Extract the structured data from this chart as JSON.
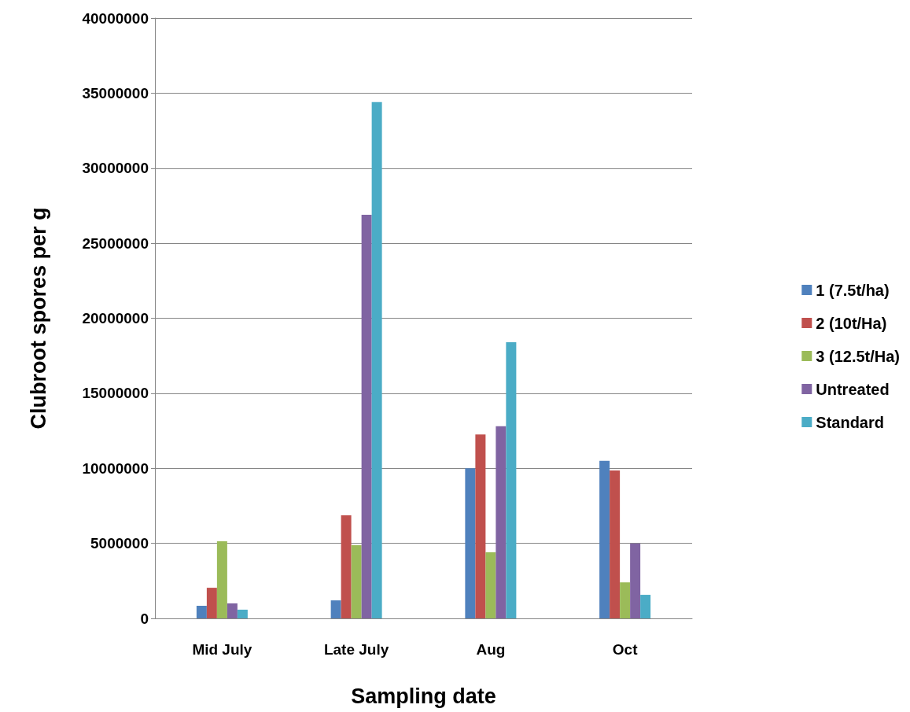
{
  "chart_data": {
    "type": "bar",
    "xlabel": "Sampling date",
    "ylabel": "Clubroot spores per g",
    "categories": [
      "Mid July",
      "Late July",
      "Aug",
      "Oct"
    ],
    "series": [
      {
        "name": "1 (7.5t/ha)",
        "color": "#4f81bd",
        "values": [
          840000,
          1200000,
          10000000,
          10500000
        ]
      },
      {
        "name": "2 (10t/Ha)",
        "color": "#c0504d",
        "values": [
          2040000,
          6870000,
          12260000,
          9850000
        ]
      },
      {
        "name": "3 (12.5t/Ha)",
        "color": "#9bbb59",
        "values": [
          5140000,
          4870000,
          4400000,
          2400000
        ]
      },
      {
        "name": "Untreated",
        "color": "#8064a2",
        "values": [
          1000000,
          26900000,
          12800000,
          5000000
        ]
      },
      {
        "name": "Standard",
        "color": "#4bacc6",
        "values": [
          580000,
          34400000,
          18400000,
          1570000
        ]
      }
    ],
    "ylim": [
      0,
      40000000
    ],
    "yticks": [
      0,
      5000000,
      10000000,
      15000000,
      20000000,
      25000000,
      30000000,
      35000000,
      40000000
    ],
    "grid": "y",
    "legend": "right"
  }
}
